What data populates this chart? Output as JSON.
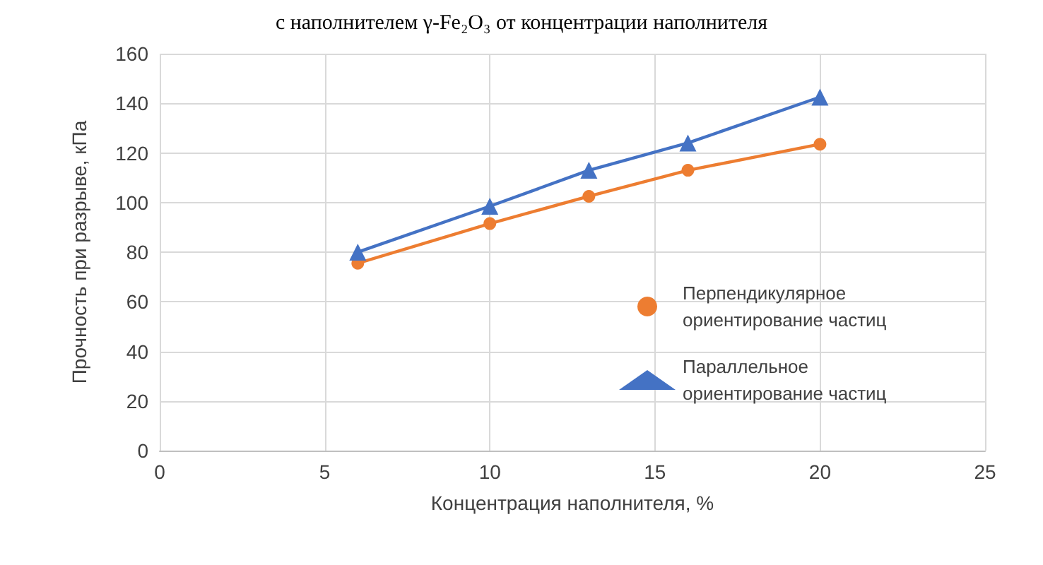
{
  "chart_data": {
    "type": "line",
    "title": "с наполнителем γ-Fe₂O₃ от концентрации наполнителя",
    "xlabel": "Концентрация наполнителя, %",
    "ylabel": "Прочность при разрыве, кПа",
    "x": [
      6,
      10,
      13,
      16,
      20
    ],
    "series": [
      {
        "name": "Перпендикулярное\nориентирование частиц",
        "color": "#ed7d31",
        "marker": "circle",
        "values": [
          75.5,
          91.5,
          102.5,
          113,
          123.5
        ]
      },
      {
        "name": "Параллельное\nориентирование частиц",
        "color": "#4472c4",
        "marker": "triangle",
        "values": [
          80,
          98.5,
          113,
          124,
          142.5
        ]
      }
    ],
    "xlim": [
      0,
      25
    ],
    "xticks": [
      0,
      5,
      10,
      15,
      20,
      25
    ],
    "ylim": [
      0,
      160
    ],
    "yticks": [
      0,
      20,
      40,
      60,
      80,
      100,
      120,
      140,
      160
    ],
    "grid": true,
    "legend": "right"
  }
}
